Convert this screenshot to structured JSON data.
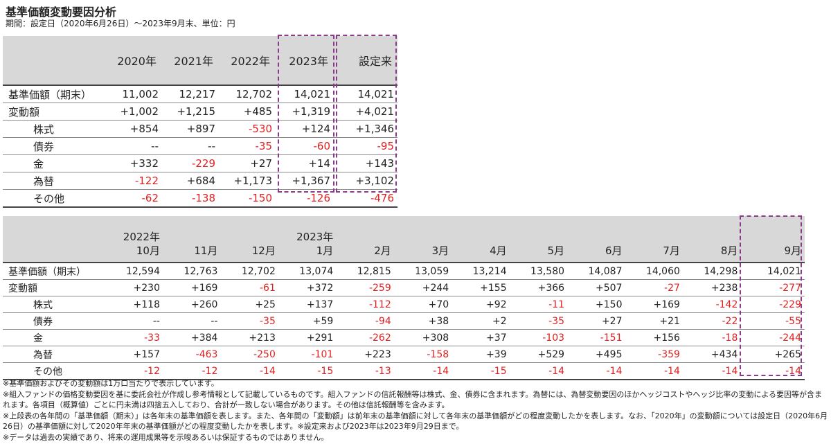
{
  "title": "基準価額変動要因分析",
  "period": "期間：設定日（2020年6月26日）～2023年9月末、単位：円",
  "table1": {
    "columns": [
      "2020年",
      "2021年",
      "2022年",
      "2023年",
      "設定来"
    ],
    "rows": [
      {
        "label": "基準価額（期末）",
        "sub": false,
        "values": [
          "11,002",
          "12,217",
          "12,702",
          "14,021",
          "14,021"
        ]
      },
      {
        "label": "変動額",
        "sub": false,
        "values": [
          "+1,002",
          "+1,215",
          "+485",
          "+1,319",
          "+4,021"
        ]
      },
      {
        "label": "株式",
        "sub": true,
        "values": [
          "+854",
          "+897",
          "-530",
          "+124",
          "+1,346"
        ]
      },
      {
        "label": "債券",
        "sub": true,
        "values": [
          "--",
          "--",
          "-35",
          "-60",
          "-95"
        ]
      },
      {
        "label": "金",
        "sub": true,
        "values": [
          "+332",
          "-229",
          "+27",
          "+14",
          "+143"
        ]
      },
      {
        "label": "為替",
        "sub": true,
        "values": [
          "-122",
          "+684",
          "+1,173",
          "+1,367",
          "+3,102"
        ]
      },
      {
        "label": "その他",
        "sub": true,
        "values": [
          "-62",
          "-138",
          "-150",
          "-126",
          "-476"
        ]
      }
    ]
  },
  "table2": {
    "year_labels": [
      "2022年",
      "",
      "",
      "2023年",
      "",
      "",
      "",
      "",
      "",
      "",
      "",
      ""
    ],
    "months": [
      "10月",
      "11月",
      "12月",
      "1月",
      "2月",
      "3月",
      "4月",
      "5月",
      "6月",
      "7月",
      "8月",
      "9月"
    ],
    "rows": [
      {
        "label": "基準価額（期末）",
        "sub": false,
        "values": [
          "12,594",
          "12,763",
          "12,702",
          "13,074",
          "12,815",
          "13,059",
          "13,214",
          "13,580",
          "14,087",
          "14,060",
          "14,298",
          "14,021"
        ]
      },
      {
        "label": "変動額",
        "sub": false,
        "values": [
          "+230",
          "+169",
          "-61",
          "+372",
          "-259",
          "+244",
          "+155",
          "+366",
          "+507",
          "-27",
          "+238",
          "-277"
        ]
      },
      {
        "label": "株式",
        "sub": true,
        "values": [
          "+118",
          "+260",
          "+25",
          "+137",
          "-112",
          "+70",
          "+92",
          "-11",
          "+150",
          "+169",
          "-142",
          "-229"
        ]
      },
      {
        "label": "債券",
        "sub": true,
        "values": [
          "--",
          "--",
          "-35",
          "+59",
          "-94",
          "+38",
          "+2",
          "-35",
          "+27",
          "+21",
          "-22",
          "-55"
        ]
      },
      {
        "label": "金",
        "sub": true,
        "values": [
          "-33",
          "+384",
          "+213",
          "+291",
          "-262",
          "+308",
          "+37",
          "-103",
          "-151",
          "+156",
          "-18",
          "-244"
        ]
      },
      {
        "label": "為替",
        "sub": true,
        "values": [
          "+157",
          "-463",
          "-250",
          "-101",
          "+223",
          "-158",
          "+39",
          "+529",
          "+495",
          "-359",
          "+434",
          "+265"
        ]
      },
      {
        "label": "その他",
        "sub": true,
        "values": [
          "-12",
          "-12",
          "-14",
          "-15",
          "-13",
          "-14",
          "-15",
          "-14",
          "-14",
          "-14",
          "-14",
          "-14"
        ]
      }
    ]
  },
  "notes": [
    "※基準価額およびその変動額は1万口当たりで表示しています。",
    "※組入ファンドの価格変動要因を基に委託会社が作成し参考情報として記載しているものです。組入ファンドの信託報酬等は株式、金、債券に含まれます。為替には、為替変動要因のほかヘッジコストやヘッジ比率の変動による要因等が含まれます。各項目（概算値）ごとに円未満は四捨五入しており、合計が一致しない場合があります。その他は信託報酬等を含みます。",
    "※上段表の各年間の「基準価額（期末）」は各年末の基準価額を表します。また、各年間の「変動額」は前年末の基準価額に対して各年末の基準価額がどの程度変動したかを表します。なお、「2020年」の変動額については設定日（2020年6月26日）の基準価額に対して2020年年末の基準価額がどの程度変動したかを表します。※設定来および2023年は2023年9月29日まで。",
    "※データは過去の実績であり、将来の運用成果等を示唆あるいは保証するものではありません。"
  ],
  "colors": {
    "negative": "#e02020",
    "header_bg": "#d8d8d8",
    "highlight_border": "#8a3a8a"
  }
}
